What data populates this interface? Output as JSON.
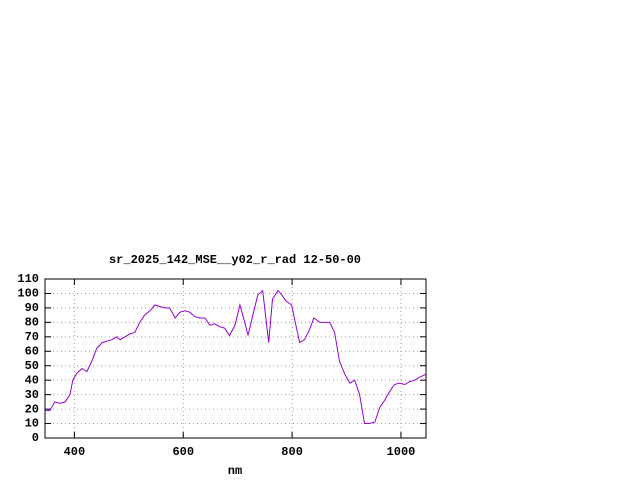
{
  "chart_data": {
    "type": "line",
    "title": "sr_2025_142_MSE__y02_r_rad 12-50-00",
    "x_label": "nm",
    "xlim": [
      346,
      1046
    ],
    "xticks": [
      400,
      600,
      800,
      1000
    ],
    "ylim": [
      0,
      110
    ],
    "yticks": [
      0,
      10,
      20,
      30,
      40,
      50,
      60,
      70,
      80,
      90,
      100,
      110
    ],
    "grid": true,
    "series": [
      {
        "color": "#9400d3",
        "x": [
          346,
          355,
          364,
          374,
          383,
          392,
          397,
          405,
          414,
          423,
          432,
          441,
          451,
          460,
          469,
          478,
          484,
          493,
          502,
          511,
          520,
          529,
          539,
          548,
          557,
          566,
          575,
          585,
          594,
          603,
          612,
          621,
          630,
          640,
          649,
          658,
          667,
          676,
          685,
          695,
          704,
          713,
          719,
          726,
          737,
          746,
          752,
          757,
          764,
          774,
          781,
          788,
          799,
          807,
          814,
          823,
          832,
          840,
          851,
          860,
          869,
          878,
          887,
          897,
          906,
          915,
          924,
          933,
          942,
          952,
          961,
          970,
          979,
          988,
          997,
          1007,
          1016,
          1025,
          1034,
          1045
        ],
        "values": [
          19,
          19,
          25,
          24,
          25,
          30,
          40,
          45,
          48,
          46,
          53,
          62,
          66,
          67,
          68,
          70,
          68,
          70,
          72,
          73,
          80,
          85,
          88,
          92,
          91,
          90,
          90,
          83,
          87,
          88,
          87,
          84,
          83,
          83,
          78,
          79,
          77,
          76,
          71,
          78,
          92,
          80,
          71,
          82,
          99,
          102,
          82,
          66,
          96,
          102,
          99,
          95,
          92,
          78,
          66,
          68,
          75,
          83,
          80,
          80,
          80,
          73,
          53,
          44,
          38,
          40,
          30,
          10,
          10,
          11,
          21,
          26,
          32,
          37,
          38,
          37,
          39,
          40,
          42,
          44
        ]
      }
    ]
  }
}
